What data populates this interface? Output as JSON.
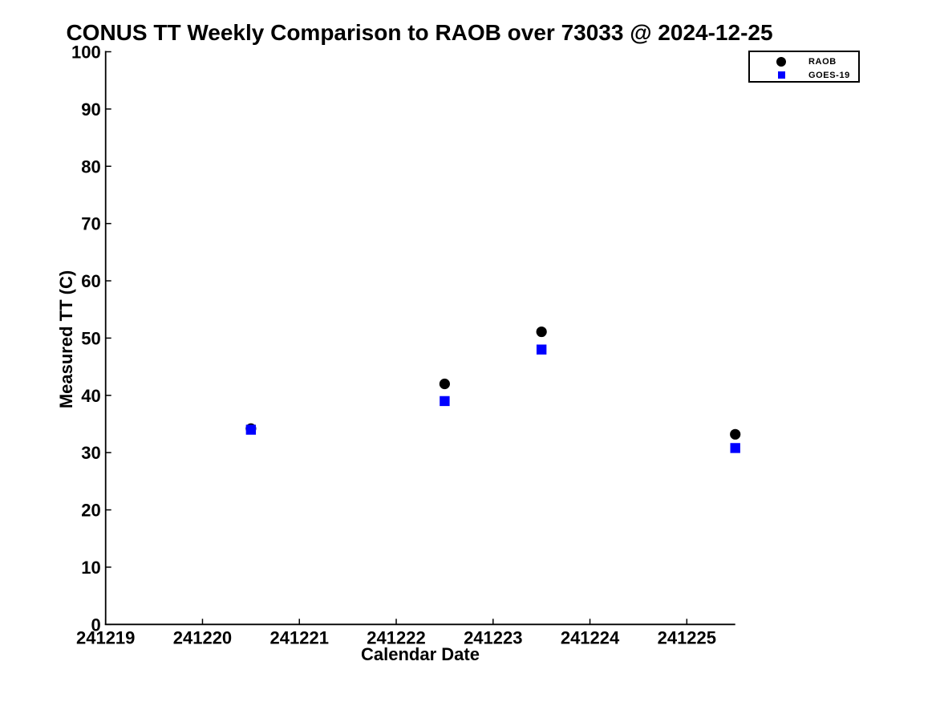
{
  "figure": {
    "background": "#ffffff",
    "text_color": "#000000"
  },
  "chart_data": {
    "type": "scatter",
    "title": "CONUS TT Weekly Comparison to RAOB over 73033 @ 2024-12-25",
    "xlabel": "Calendar Date",
    "ylabel": "Measured TT (C)",
    "xlim": [
      241219,
      241225.5
    ],
    "ylim": [
      0,
      100
    ],
    "xticks": [
      241219,
      241220,
      241221,
      241222,
      241223,
      241224,
      241225
    ],
    "yticks": [
      0,
      10,
      20,
      30,
      40,
      50,
      60,
      70,
      80,
      90,
      100
    ],
    "grid": false,
    "tick_direction": "in",
    "spines": [
      "left",
      "bottom"
    ],
    "legend": {
      "position": "top-right",
      "entries": [
        {
          "label": "RAOB",
          "marker": "circle",
          "color": "#000000"
        },
        {
          "label": "GOES-19",
          "marker": "square",
          "color": "#0000ff"
        }
      ]
    },
    "series": [
      {
        "name": "RAOB",
        "marker": "circle",
        "color": "#000000",
        "points": [
          [
            241220.5,
            34.2
          ],
          [
            241222.5,
            42.0
          ],
          [
            241223.5,
            51.1
          ],
          [
            241225.5,
            33.2
          ]
        ]
      },
      {
        "name": "GOES-19",
        "marker": "square",
        "color": "#0000ff",
        "points": [
          [
            241220.5,
            34.0
          ],
          [
            241222.5,
            39.0
          ],
          [
            241223.5,
            48.0
          ],
          [
            241225.5,
            30.8
          ]
        ]
      }
    ]
  }
}
